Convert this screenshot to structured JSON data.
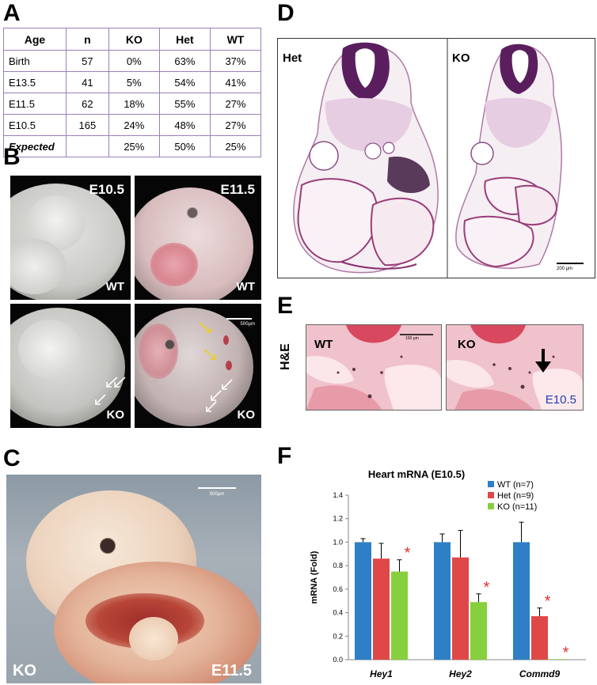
{
  "panel_labels": {
    "a": "A",
    "b": "B",
    "c": "C",
    "d": "D",
    "e": "E",
    "f": "F"
  },
  "table_a": {
    "headers": [
      "Age",
      "n",
      "KO",
      "Het",
      "WT"
    ],
    "rows": [
      [
        "Birth",
        "57",
        "0%",
        "63%",
        "37%"
      ],
      [
        "E13.5",
        "41",
        "5%",
        "54%",
        "41%"
      ],
      [
        "E11.5",
        "62",
        "18%",
        "55%",
        "27%"
      ],
      [
        "E10.5",
        "165",
        "24%",
        "48%",
        "27%"
      ],
      [
        "Expected",
        "",
        "25%",
        "50%",
        "25%"
      ]
    ]
  },
  "panel_b": {
    "top_left": {
      "stage": "E10.5",
      "genotype": "WT"
    },
    "top_right": {
      "stage": "E11.5",
      "genotype": "WT"
    },
    "bottom_left": {
      "genotype": "KO"
    },
    "bottom_right": {
      "genotype": "KO",
      "scale_bar": "500μm"
    }
  },
  "panel_c": {
    "genotype": "KO",
    "stage": "E11.5",
    "scale_bar": "500μm"
  },
  "panel_d": {
    "left_label": "Het",
    "right_label": "KO",
    "scale_bar": "200 μm"
  },
  "panel_e": {
    "side_label": "H&E",
    "left_label": "WT",
    "right_label": "KO",
    "stage": "E10.5",
    "scale_bar": "100 μm"
  },
  "chart_data": {
    "type": "bar",
    "title": "Heart mRNA (E10.5)",
    "ylabel": "mRNA (Fold)",
    "xlabel": "",
    "ylim": [
      0,
      1.4
    ],
    "yticks": [
      "0.0",
      "0.2",
      "0.4",
      "0.6",
      "0.8",
      "1.0",
      "1.2",
      "1.4"
    ],
    "categories": [
      "Hey1",
      "Hey2",
      "Commd9"
    ],
    "series": [
      {
        "name": "WT (n=7)",
        "color": "#2e7fc6",
        "values": [
          1.0,
          1.0,
          1.0
        ],
        "errors": [
          0.03,
          0.07,
          0.17
        ]
      },
      {
        "name": "Het (n=9)",
        "color": "#e04747",
        "values": [
          0.86,
          0.87,
          0.37
        ],
        "errors": [
          0.13,
          0.23,
          0.07
        ]
      },
      {
        "name": "KO (n=11)",
        "color": "#86d03d",
        "values": [
          0.75,
          0.49,
          0.005
        ],
        "errors": [
          0.1,
          0.07,
          0.0
        ]
      }
    ],
    "significance": [
      {
        "category": "Hey1",
        "series": "KO (n=11)",
        "mark": "*"
      },
      {
        "category": "Hey2",
        "series": "KO (n=11)",
        "mark": "*"
      },
      {
        "category": "Commd9",
        "series": "Het (n=9)",
        "mark": "*"
      },
      {
        "category": "Commd9",
        "series": "KO (n=11)",
        "mark": "*"
      }
    ],
    "legend": "top-right",
    "grid": false,
    "significance_color": "#e03030"
  }
}
